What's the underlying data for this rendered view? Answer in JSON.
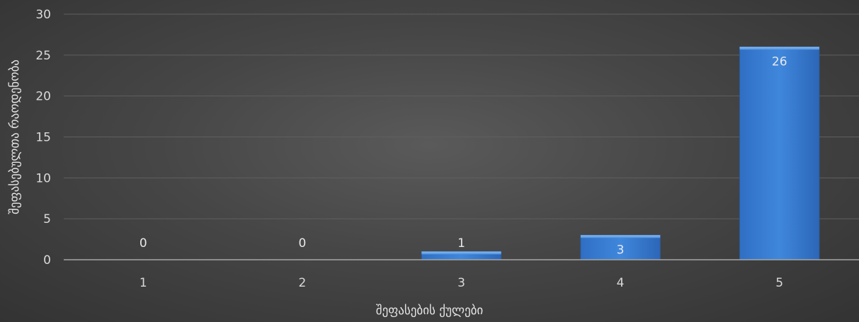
{
  "chart_data": {
    "type": "bar",
    "categories": [
      "1",
      "2",
      "3",
      "4",
      "5"
    ],
    "values": [
      0,
      0,
      1,
      3,
      26
    ],
    "data_labels": [
      "0",
      "0",
      "1",
      "3",
      "26"
    ],
    "title": "",
    "xlabel": "შეფასების ქულები",
    "ylabel": "შეფასებულთა რაოდენობა",
    "ylim": [
      0,
      30
    ],
    "yticks": [
      0,
      5,
      10,
      15,
      20,
      25,
      30
    ],
    "grid": true,
    "legend": "none",
    "bar_color": "#3a7fd4"
  }
}
